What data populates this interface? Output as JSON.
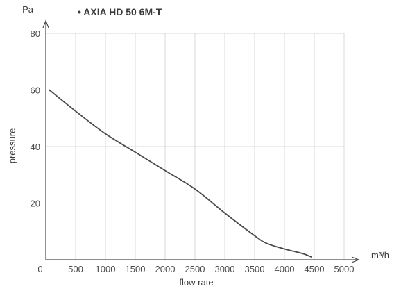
{
  "chart_data": {
    "type": "line",
    "title": "• AXIA HD 50 6M-T",
    "xlabel": "flow rate",
    "ylabel": "pressure",
    "x_unit": "m³/h",
    "y_unit": "Pa",
    "xlim": [
      0,
      5000
    ],
    "ylim": [
      0,
      80
    ],
    "x_ticks": [
      0,
      500,
      1000,
      1500,
      2000,
      2500,
      3000,
      3500,
      4000,
      4500,
      5000
    ],
    "y_ticks": [
      20,
      40,
      60,
      80
    ],
    "grid": true,
    "series": [
      {
        "x": [
          60,
          500,
          1000,
          1500,
          2000,
          2500,
          3000,
          3500,
          3700,
          4000,
          4300,
          4450
        ],
        "y": [
          60,
          52.5,
          44.5,
          38,
          31.5,
          25,
          16.5,
          8.5,
          5.8,
          3.8,
          2.2,
          1.0
        ]
      }
    ]
  }
}
